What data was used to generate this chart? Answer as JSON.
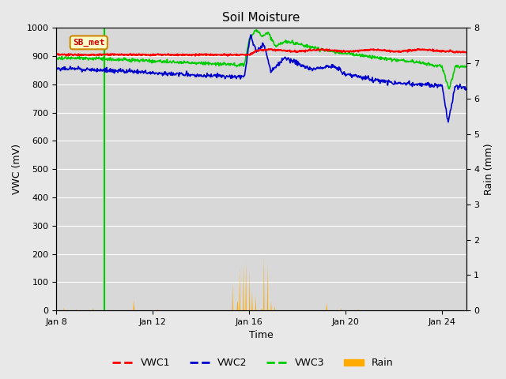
{
  "title": "Soil Moisture",
  "xlabel": "Time",
  "ylabel_left": "VWC (mV)",
  "ylabel_right": "Rain (mm)",
  "ylim_left": [
    0,
    1000
  ],
  "ylim_right": [
    0,
    8.0
  ],
  "yticks_left": [
    0,
    100,
    200,
    300,
    400,
    500,
    600,
    700,
    800,
    900,
    1000
  ],
  "yticks_right": [
    0.0,
    1.0,
    2.0,
    3.0,
    4.0,
    5.0,
    6.0,
    7.0,
    8.0
  ],
  "xtick_positions": [
    0,
    4,
    8,
    12,
    16
  ],
  "xtick_labels": [
    "Jan 8",
    "Jan 12",
    "Jan 16",
    "Jan 20",
    "Jan 24"
  ],
  "xlim": [
    0,
    17
  ],
  "annotation_text": "SB_met",
  "annotation_bg": "#ffffcc",
  "annotation_border": "#cc8800",
  "annotation_text_color": "#cc0000",
  "fig_bg_color": "#e8e8e8",
  "plot_bg_color": "#d8d8d8",
  "grid_color": "#ffffff",
  "colors": {
    "VWC1": "#ff0000",
    "VWC2": "#0000cc",
    "VWC3": "#00cc00",
    "Rain": "#ffaa00"
  },
  "vline_day": 2.0,
  "vline_color": "#00cc00",
  "legend_dashes": true
}
